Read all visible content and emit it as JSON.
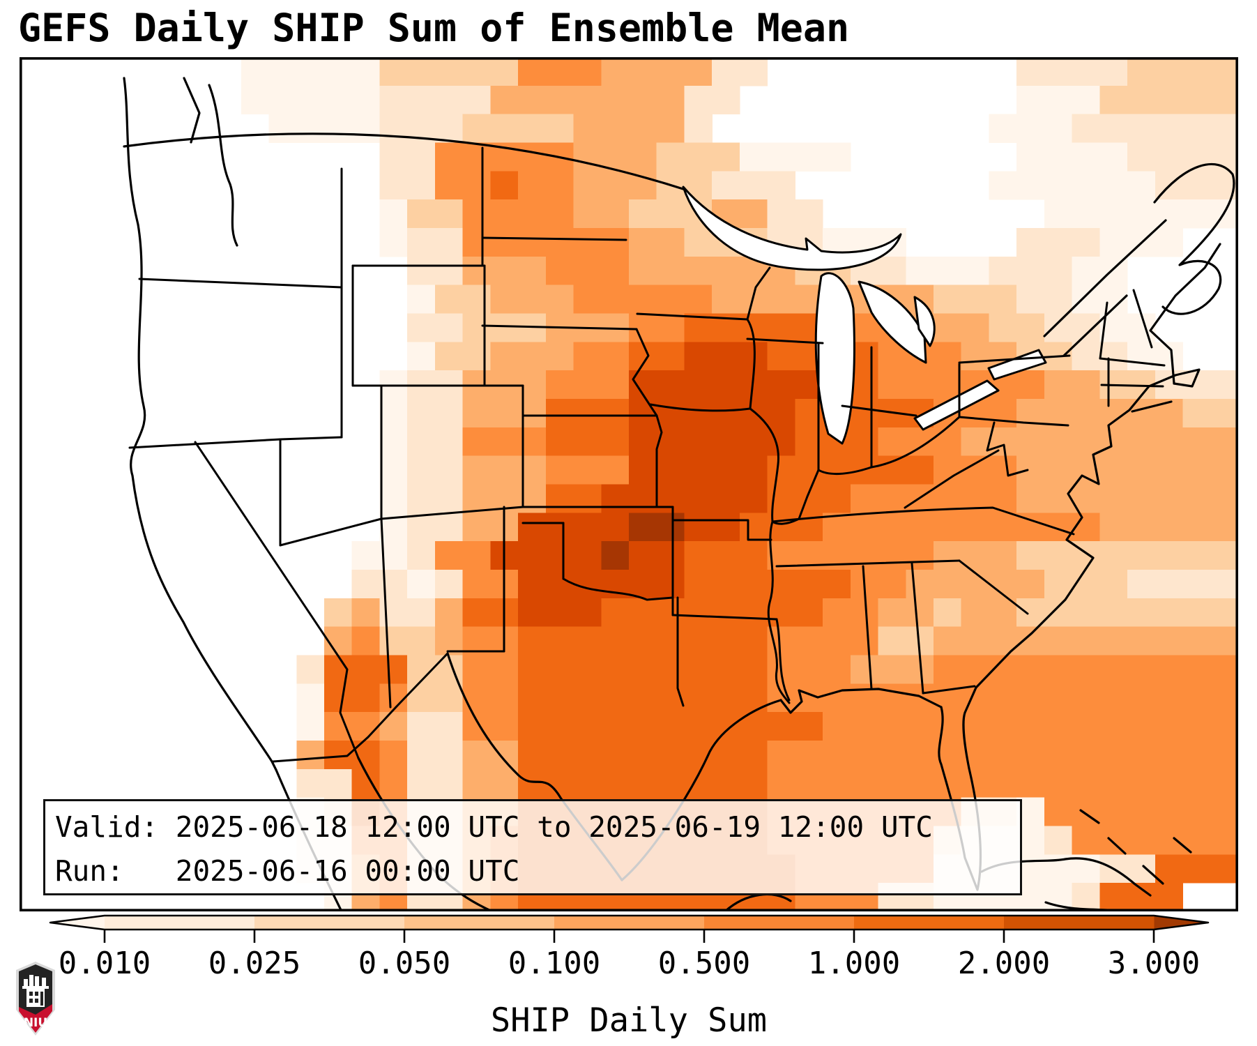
{
  "header": {
    "title": "GEFS Daily SHIP Sum of Ensemble Mean"
  },
  "annotation": {
    "valid": "Valid: 2025-06-18 12:00 UTC to 2025-06-19 12:00 UTC",
    "run": "Run:   2025-06-16 00:00 UTC"
  },
  "colorbar": {
    "label": "SHIP Daily Sum",
    "ticks": [
      "0.010",
      "0.025",
      "0.050",
      "0.100",
      "0.500",
      "1.000",
      "2.000",
      "3.000"
    ],
    "under_color": "#fff5eb",
    "over_color": "#a23a03",
    "segment_colors": [
      "#feecda",
      "#fdd9b5",
      "#fdc28b",
      "#fda55e",
      "#f98634",
      "#ed6b11",
      "#d25303"
    ],
    "outline_color": "#000000"
  },
  "logo": {
    "text": "NIU",
    "red": "#C8102E",
    "dark": "#232323"
  },
  "chart_data": {
    "type": "heatmap",
    "title": "GEFS Daily SHIP Sum of Ensemble Mean",
    "colorbar_label": "SHIP Daily Sum",
    "valid": "2025-06-18 12:00 UTC to 2025-06-19 12:00 UTC",
    "run": "2025-06-16 00:00 UTC",
    "boundaries": [
      0.01,
      0.025,
      0.05,
      0.1,
      0.5,
      1.0,
      2.0,
      3.0
    ],
    "extend": "both",
    "region": "CONUS",
    "legend_position": "bottom",
    "grid": {
      "cols": 44,
      "rows": 30,
      "palette": {
        "0": "#ffffff",
        "1": "#fff5eb",
        "2": "#fee6ce",
        "3": "#fdd0a2",
        "4": "#fdae6b",
        "5": "#fd8d3c",
        "6": "#f16913",
        "7": "#d94801",
        "8": "#a63603"
      },
      "rows_data": [
        "00000000111113333355544442200000000022223333",
        "00000000111112222444444422000000000011133333",
        "00000000011112223333444420000000000111222222",
        "00000000000002255555444333111100000011112222",
        "00000000000002255655444332220000000111111222",
        "00000000000001335555443334422000000001111111",
        "00000000000001225555554433322111000022211100",
        "00000000000000224445554444443322111222110000",
        "00000000000000133444555554444444433322110000",
        "00000000000000223334445566666555444332211000",
        "00000000000000133444556677766665554433221100",
        "00000000000001224445557777777665555554433222",
        "00000000000001224446667777776666655544444433",
        "00000000000001225556667777776665554444444444",
        "00000000000001224445557777766666655544444444",
        "00000000000001224446677777766655555544444444",
        "00000000000001224477778877666555555555544444",
        "00000000000011255777787766655555544433333333",
        "00000000000022125577777766666655444443332222",
        "00000000000342246677766666666554434433333333",
        "00000000000453345566666666655553344444444444",
        "00000000002666335566666666655544455555555555",
        "00000000001665335566666666655555555555555555",
        "00000000001554225566666666666555555555555555",
        "00000000004665224466666666655555555555555555",
        "00000000002265224466666666655555555555555555",
        "00000000001265224466666666655555552215555555",
        "00000000001155224566666666655555521112555555",
        "00000000001145224566666666665555511111122666",
        "00000000000145224566666666665552211111266600"
      ]
    }
  }
}
